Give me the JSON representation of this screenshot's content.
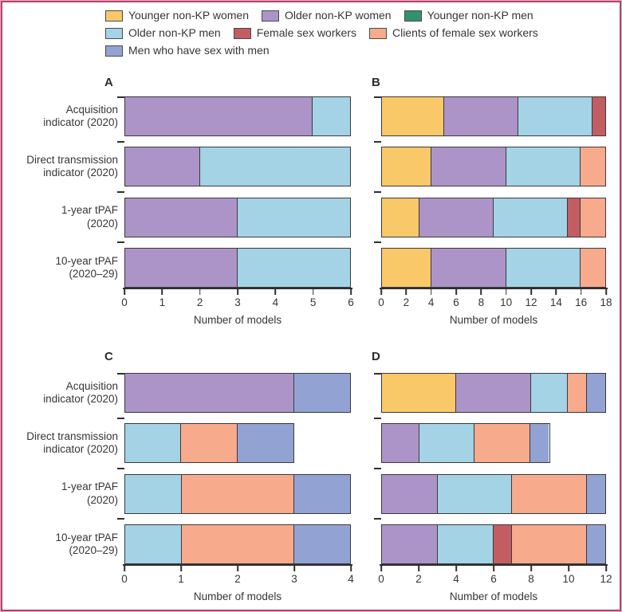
{
  "figure": {
    "border_outer_color": "#E8AFC3",
    "border_inner_color": "#B5416A",
    "text_color": "#363636"
  },
  "legend": {
    "items": [
      {
        "id": "younger-nonkp-women",
        "label": "Younger non-KP women",
        "color": "#F9C869"
      },
      {
        "id": "older-nonkp-women",
        "label": "Older non-KP women",
        "color": "#AC94C8"
      },
      {
        "id": "younger-nonkp-men",
        "label": "Younger non-KP men",
        "color": "#33916B"
      },
      {
        "id": "older-nonkp-men",
        "label": "Older non-KP men",
        "color": "#A3D3E5"
      },
      {
        "id": "female-sex-workers",
        "label": "Female sex workers",
        "color": "#C25D62"
      },
      {
        "id": "clients-of-fsw",
        "label": "Clients of female sex workers",
        "color": "#F8AA8C"
      },
      {
        "id": "msm",
        "label": "Men who have sex with men",
        "color": "#92A3D3"
      }
    ]
  },
  "y_axis": {
    "categories": [
      {
        "line1": "Acquisition",
        "line2": "indicator (2020)"
      },
      {
        "line1": "Direct transmission",
        "line2": "indicator (2020)"
      },
      {
        "line1": "1-year tPAF",
        "line2": "(2020)"
      },
      {
        "line1": "10-year tPAF",
        "line2": "(2020–29)"
      }
    ]
  },
  "chart_data": [
    {
      "panel": "A",
      "type": "bar",
      "orientation": "horizontal",
      "stacked": true,
      "xlabel": "Number of models",
      "xlim": [
        0,
        6
      ],
      "xticks": [
        0,
        1,
        2,
        3,
        4,
        5,
        6
      ],
      "rows": [
        {
          "category": "Acquisition indicator (2020)",
          "segments": [
            {
              "group": "Older non-KP women",
              "value": 5
            },
            {
              "group": "Older non-KP men",
              "value": 1
            }
          ]
        },
        {
          "category": "Direct transmission indicator (2020)",
          "segments": [
            {
              "group": "Older non-KP women",
              "value": 2
            },
            {
              "group": "Older non-KP men",
              "value": 4
            }
          ]
        },
        {
          "category": "1-year tPAF (2020)",
          "segments": [
            {
              "group": "Older non-KP women",
              "value": 3
            },
            {
              "group": "Older non-KP men",
              "value": 3
            }
          ]
        },
        {
          "category": "10-year tPAF (2020–29)",
          "segments": [
            {
              "group": "Older non-KP women",
              "value": 3
            },
            {
              "group": "Older non-KP men",
              "value": 3
            }
          ]
        }
      ]
    },
    {
      "panel": "B",
      "type": "bar",
      "orientation": "horizontal",
      "stacked": true,
      "xlabel": "Number of models",
      "xlim": [
        0,
        18
      ],
      "xticks": [
        0,
        2,
        4,
        6,
        8,
        10,
        12,
        14,
        16,
        18
      ],
      "rows": [
        {
          "category": "Acquisition indicator (2020)",
          "segments": [
            {
              "group": "Younger non-KP women",
              "value": 5
            },
            {
              "group": "Older non-KP women",
              "value": 6
            },
            {
              "group": "Older non-KP men",
              "value": 6
            },
            {
              "group": "Female sex workers",
              "value": 1
            }
          ]
        },
        {
          "category": "Direct transmission indicator (2020)",
          "segments": [
            {
              "group": "Younger non-KP women",
              "value": 4
            },
            {
              "group": "Older non-KP women",
              "value": 6
            },
            {
              "group": "Older non-KP men",
              "value": 6
            },
            {
              "group": "Clients of female sex workers",
              "value": 2
            }
          ]
        },
        {
          "category": "1-year tPAF (2020)",
          "segments": [
            {
              "group": "Younger non-KP women",
              "value": 3
            },
            {
              "group": "Older non-KP women",
              "value": 6
            },
            {
              "group": "Older non-KP men",
              "value": 6
            },
            {
              "group": "Female sex workers",
              "value": 1
            },
            {
              "group": "Clients of female sex workers",
              "value": 2
            }
          ]
        },
        {
          "category": "10-year tPAF (2020–29)",
          "segments": [
            {
              "group": "Younger non-KP women",
              "value": 4
            },
            {
              "group": "Older non-KP women",
              "value": 6
            },
            {
              "group": "Older non-KP men",
              "value": 6
            },
            {
              "group": "Clients of female sex workers",
              "value": 2
            }
          ]
        }
      ]
    },
    {
      "panel": "C",
      "type": "bar",
      "orientation": "horizontal",
      "stacked": true,
      "xlabel": "Number of models",
      "xlim": [
        0,
        4
      ],
      "xticks": [
        0,
        1,
        2,
        3,
        4
      ],
      "rows": [
        {
          "category": "Acquisition indicator (2020)",
          "segments": [
            {
              "group": "Older non-KP women",
              "value": 3
            },
            {
              "group": "Men who have sex with men",
              "value": 1
            }
          ]
        },
        {
          "category": "Direct transmission indicator (2020)",
          "segments": [
            {
              "group": "Older non-KP men",
              "value": 1
            },
            {
              "group": "Clients of female sex workers",
              "value": 1
            },
            {
              "group": "Men who have sex with men",
              "value": 1
            }
          ]
        },
        {
          "category": "1-year tPAF (2020)",
          "segments": [
            {
              "group": "Older non-KP men",
              "value": 1
            },
            {
              "group": "Clients of female sex workers",
              "value": 2
            },
            {
              "group": "Men who have sex with men",
              "value": 1
            }
          ]
        },
        {
          "category": "10-year tPAF (2020–29)",
          "segments": [
            {
              "group": "Older non-KP men",
              "value": 1
            },
            {
              "group": "Clients of female sex workers",
              "value": 2
            },
            {
              "group": "Men who have sex with men",
              "value": 1
            }
          ]
        }
      ]
    },
    {
      "panel": "D",
      "type": "bar",
      "orientation": "horizontal",
      "stacked": true,
      "xlabel": "Number of models",
      "xlim": [
        0,
        12
      ],
      "xticks": [
        0,
        2,
        4,
        6,
        8,
        10,
        12
      ],
      "rows": [
        {
          "category": "Acquisition indicator (2020)",
          "segments": [
            {
              "group": "Younger non-KP women",
              "value": 4
            },
            {
              "group": "Older non-KP women",
              "value": 4
            },
            {
              "group": "Older non-KP men",
              "value": 2
            },
            {
              "group": "Clients of female sex workers",
              "value": 1
            },
            {
              "group": "Men who have sex with men",
              "value": 1
            }
          ]
        },
        {
          "category": "Direct transmission indicator (2020)",
          "segments": [
            {
              "group": "Older non-KP women",
              "value": 2
            },
            {
              "group": "Older non-KP men",
              "value": 3
            },
            {
              "group": "Clients of female sex workers",
              "value": 3
            },
            {
              "group": "Men who have sex with men",
              "value": 1
            }
          ]
        },
        {
          "category": "1-year tPAF (2020)",
          "segments": [
            {
              "group": "Older non-KP women",
              "value": 3
            },
            {
              "group": "Older non-KP men",
              "value": 4
            },
            {
              "group": "Clients of female sex workers",
              "value": 4
            },
            {
              "group": "Men who have sex with men",
              "value": 1
            }
          ]
        },
        {
          "category": "10-year tPAF (2020–29)",
          "segments": [
            {
              "group": "Older non-KP women",
              "value": 3
            },
            {
              "group": "Older non-KP men",
              "value": 3
            },
            {
              "group": "Female sex workers",
              "value": 1
            },
            {
              "group": "Clients of female sex workers",
              "value": 4
            },
            {
              "group": "Men who have sex with men",
              "value": 1
            }
          ]
        }
      ]
    }
  ]
}
